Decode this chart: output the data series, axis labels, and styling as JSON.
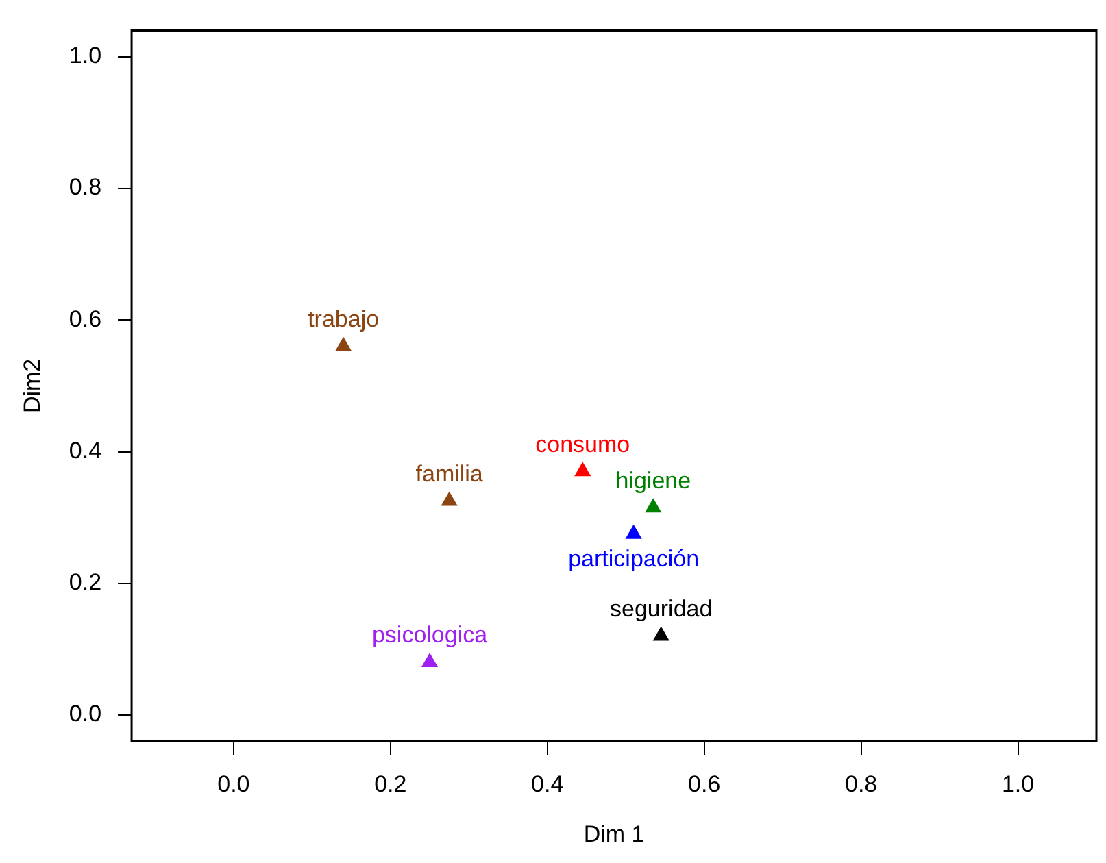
{
  "chart_data": {
    "type": "scatter",
    "xlabel": "Dim 1",
    "ylabel": "Dim2",
    "marker": "triangle",
    "grid": false,
    "legend": false,
    "xlim": [
      -0.13,
      1.1
    ],
    "ylim": [
      -0.04,
      1.04
    ],
    "xticks": [
      {
        "value": 0,
        "label": "0.0"
      },
      0.2,
      0.4,
      0.6,
      0.8,
      {
        "value": 1,
        "label": "1.0"
      }
    ],
    "yticks": [
      {
        "value": 0,
        "label": "0.0"
      },
      0.2,
      0.4,
      0.6,
      0.8,
      {
        "value": 1,
        "label": "1.0"
      }
    ],
    "series": [
      {
        "name": "trabajo",
        "color": "#8b4513",
        "x": [
          0.14
        ],
        "values": [
          0.56
        ]
      },
      {
        "name": "familia",
        "color": "#8b4513",
        "x": [
          0.275
        ],
        "values": [
          0.325
        ]
      },
      {
        "name": "consumo",
        "color": "#ff0000",
        "x": [
          0.445
        ],
        "values": [
          0.37
        ]
      },
      {
        "name": "higiene",
        "color": "#008000",
        "x": [
          0.535
        ],
        "values": [
          0.315
        ]
      },
      {
        "name": "participación",
        "color": "#0000ff",
        "x": [
          0.51
        ],
        "values": [
          0.275
        ]
      },
      {
        "name": "seguridad",
        "color": "#000000",
        "x": [
          0.545
        ],
        "values": [
          0.12
        ]
      },
      {
        "name": "psicologica",
        "color": "#a020f0",
        "x": [
          0.25
        ],
        "values": [
          0.08
        ]
      }
    ]
  }
}
